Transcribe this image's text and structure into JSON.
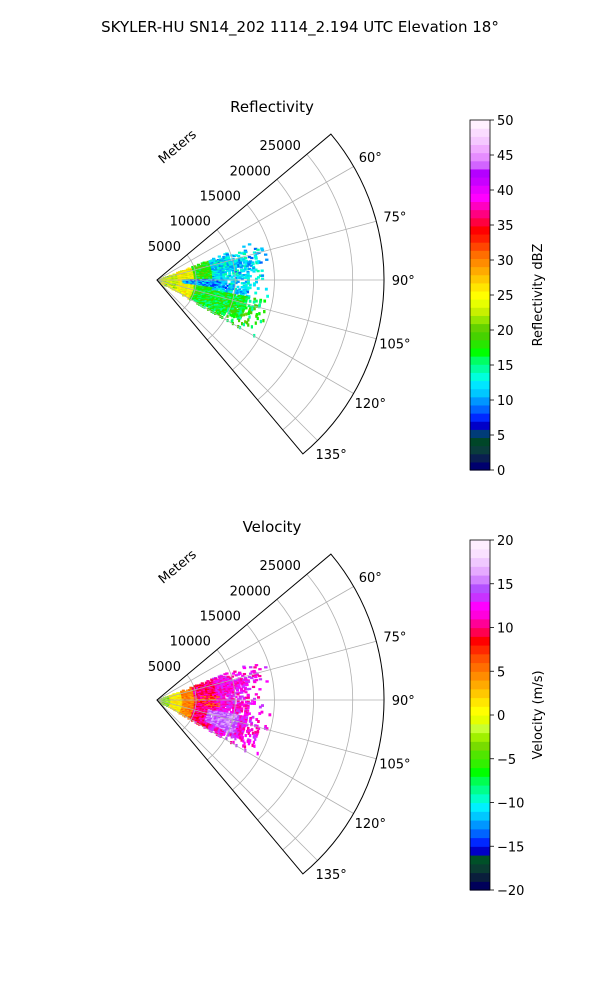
{
  "figure": {
    "title": "SKYLER-HU  SN14_202  1114_2.194 UTC Elevation 18°"
  },
  "chart_data": [
    {
      "type": "polar_sector",
      "title": "Reflectivity",
      "radial_axis_label": "Meters",
      "r_ticks": [
        5000,
        10000,
        15000,
        20000,
        25000
      ],
      "r_tick_labels": [
        "5000",
        "10000",
        "15000",
        "20000",
        "25000"
      ],
      "rlim": [
        0,
        29000
      ],
      "theta_ticks": [
        60,
        75,
        90,
        105,
        120,
        135
      ],
      "theta_tick_labels": [
        "60°",
        "75°",
        "90°",
        "105°",
        "120°",
        "135°"
      ],
      "theta_range_deg": [
        50,
        140
      ],
      "grid": true,
      "colorbar": {
        "label": "Reflectivity dBZ",
        "range": [
          0,
          50
        ],
        "ticks": [
          0,
          5,
          10,
          15,
          20,
          25,
          30,
          35,
          40,
          45,
          50
        ],
        "tick_labels": [
          "0",
          "5",
          "10",
          "15",
          "20",
          "25",
          "30",
          "35",
          "40",
          "45",
          "50"
        ],
        "colormap": "pyart_NWSRef"
      },
      "field_description": "Echoes from 0 to ~14000 m across azimuth ~70°–118°; ~20–28 dBZ near radar, ~12–18 dBZ at mid range, ~8–12 dBZ near 10000 m."
    },
    {
      "type": "polar_sector",
      "title": "Velocity",
      "radial_axis_label": "Meters",
      "r_ticks": [
        5000,
        10000,
        15000,
        20000,
        25000
      ],
      "r_tick_labels": [
        "5000",
        "10000",
        "15000",
        "20000",
        "25000"
      ],
      "rlim": [
        0,
        29000
      ],
      "theta_ticks": [
        60,
        75,
        90,
        105,
        120,
        135
      ],
      "theta_tick_labels": [
        "60°",
        "75°",
        "90°",
        "105°",
        "120°",
        "135°"
      ],
      "theta_range_deg": [
        50,
        140
      ],
      "grid": true,
      "colorbar": {
        "label": "Velocity (m/s)",
        "range": [
          -20,
          20
        ],
        "ticks": [
          -20,
          -15,
          -10,
          -5,
          0,
          5,
          10,
          15,
          20
        ],
        "tick_labels": [
          "−20",
          "−15",
          "−10",
          "−5",
          "0",
          "5",
          "10",
          "15",
          "20"
        ],
        "colormap": "pyart_NWSVel"
      },
      "field_description": "Velocities ~-5 to 0 m/s near radar, 5–12 m/s at mid range, 12–16 m/s in the southeast portion around 105°–115°."
    }
  ]
}
